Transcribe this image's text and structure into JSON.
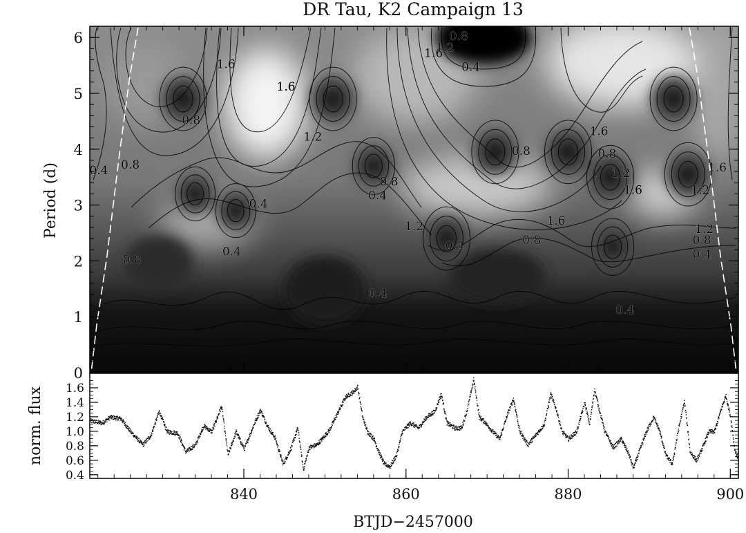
{
  "chart_data": [
    {
      "type": "heatmap",
      "title": "DR Tau, K2 Campaign 13",
      "xlabel": "",
      "ylabel": "Period (d)",
      "xlim": [
        821,
        901
      ],
      "ylim": [
        0,
        6.2
      ],
      "y_ticks": [
        "0",
        "1",
        "2",
        "3",
        "4",
        "5",
        "6"
      ],
      "colormap": "grayscale (black = low power, white = high power)",
      "contour_levels": [
        0.4,
        0.8,
        1.2,
        1.6
      ],
      "contour_labels": [
        {
          "text": "1.6",
          "x": 837.8,
          "y": 5.45
        },
        {
          "text": "1.6",
          "x": 845.2,
          "y": 5.05
        },
        {
          "text": "0.8",
          "x": 833.5,
          "y": 4.45
        },
        {
          "text": "1.2",
          "x": 848.5,
          "y": 4.15
        },
        {
          "text": "0.8",
          "x": 826.0,
          "y": 3.65
        },
        {
          "text": "0.4",
          "x": 822.1,
          "y": 3.55
        },
        {
          "text": "1.6",
          "x": 863.4,
          "y": 5.65
        },
        {
          "text": "1.2",
          "x": 864.8,
          "y": 5.75
        },
        {
          "text": "0.8",
          "x": 866.5,
          "y": 5.95
        },
        {
          "text": "0.4",
          "x": 868.0,
          "y": 5.4
        },
        {
          "text": "1.6",
          "x": 883.8,
          "y": 4.25
        },
        {
          "text": "0.8",
          "x": 874.2,
          "y": 3.9
        },
        {
          "text": "0.8",
          "x": 884.8,
          "y": 3.85
        },
        {
          "text": "1.2",
          "x": 886.5,
          "y": 3.5
        },
        {
          "text": "1.6",
          "x": 888.0,
          "y": 3.2
        },
        {
          "text": "1.2",
          "x": 896.3,
          "y": 3.2
        },
        {
          "text": "1.6",
          "x": 898.4,
          "y": 3.6
        },
        {
          "text": "0.8",
          "x": 857.9,
          "y": 3.35
        },
        {
          "text": "0.4",
          "x": 856.5,
          "y": 3.1
        },
        {
          "text": "0.4",
          "x": 841.8,
          "y": 2.95
        },
        {
          "text": "1.2",
          "x": 861.0,
          "y": 2.55
        },
        {
          "text": "1.6",
          "x": 878.5,
          "y": 2.65
        },
        {
          "text": "0.4",
          "x": 838.5,
          "y": 2.1
        },
        {
          "text": "0.8",
          "x": 826.2,
          "y": 1.95
        },
        {
          "text": "0.4",
          "x": 866.0,
          "y": 2.2
        },
        {
          "text": "0.8",
          "x": 875.5,
          "y": 2.3
        },
        {
          "text": "1.2",
          "x": 896.8,
          "y": 2.5
        },
        {
          "text": "0.8",
          "x": 896.5,
          "y": 2.3
        },
        {
          "text": "0.4",
          "x": 896.5,
          "y": 2.05
        },
        {
          "text": "0.4",
          "x": 856.5,
          "y": 1.35
        },
        {
          "text": "0.4",
          "x": 887.0,
          "y": 1.05
        }
      ],
      "power_peaks": [
        {
          "x": 832.5,
          "y": 4.9,
          "v": 1.0
        },
        {
          "x": 851.0,
          "y": 4.9,
          "v": 1.0
        },
        {
          "x": 893.0,
          "y": 4.9,
          "v": 1.0
        },
        {
          "x": 871.0,
          "y": 3.95,
          "v": 1.0
        },
        {
          "x": 880.0,
          "y": 3.95,
          "v": 1.0
        },
        {
          "x": 894.8,
          "y": 3.55,
          "v": 1.0
        },
        {
          "x": 885.2,
          "y": 3.5,
          "v": 1.0
        },
        {
          "x": 834.0,
          "y": 3.2,
          "v": 0.85
        },
        {
          "x": 839.0,
          "y": 2.9,
          "v": 0.85
        },
        {
          "x": 856.0,
          "y": 3.7,
          "v": 0.9
        },
        {
          "x": 865.0,
          "y": 2.4,
          "v": 1.0
        },
        {
          "x": 885.5,
          "y": 2.25,
          "v": 0.9
        }
      ]
    },
    {
      "type": "scatter",
      "title": "",
      "xlabel": "BTJD−2457000",
      "ylabel": "norm. flux",
      "xlim": [
        821,
        901
      ],
      "ylim": [
        0.35,
        1.8
      ],
      "x_ticks": [
        "840",
        "860",
        "880",
        "900"
      ],
      "y_ticks": [
        "0.4",
        "0.6",
        "0.8",
        "1.0",
        "1.2",
        "1.4",
        "1.6"
      ],
      "light_curve_keypoints": [
        [
          821.0,
          1.15
        ],
        [
          822.5,
          1.12
        ],
        [
          823.5,
          1.2
        ],
        [
          824.8,
          1.18
        ],
        [
          826.0,
          1.0
        ],
        [
          827.5,
          0.82
        ],
        [
          828.5,
          0.95
        ],
        [
          829.5,
          1.28
        ],
        [
          830.5,
          1.0
        ],
        [
          831.8,
          0.98
        ],
        [
          832.8,
          0.72
        ],
        [
          834.0,
          0.82
        ],
        [
          835.0,
          1.08
        ],
        [
          836.0,
          1.0
        ],
        [
          837.2,
          1.35
        ],
        [
          838.0,
          0.68
        ],
        [
          839.0,
          1.0
        ],
        [
          840.0,
          0.76
        ],
        [
          841.2,
          1.1
        ],
        [
          842.0,
          1.3
        ],
        [
          843.0,
          1.05
        ],
        [
          843.8,
          0.92
        ],
        [
          844.8,
          0.55
        ],
        [
          845.8,
          0.78
        ],
        [
          846.6,
          1.05
        ],
        [
          847.3,
          0.48
        ],
        [
          848.0,
          0.78
        ],
        [
          849.0,
          0.82
        ],
        [
          850.5,
          1.02
        ],
        [
          851.5,
          1.25
        ],
        [
          852.5,
          1.48
        ],
        [
          853.5,
          1.55
        ],
        [
          854.0,
          1.62
        ],
        [
          854.6,
          1.2
        ],
        [
          855.2,
          1.0
        ],
        [
          856.0,
          0.9
        ],
        [
          856.6,
          0.72
        ],
        [
          857.3,
          0.55
        ],
        [
          858.0,
          0.52
        ],
        [
          858.8,
          0.68
        ],
        [
          859.5,
          1.0
        ],
        [
          860.5,
          1.12
        ],
        [
          861.5,
          1.05
        ],
        [
          862.5,
          1.2
        ],
        [
          863.5,
          1.28
        ],
        [
          864.3,
          1.52
        ],
        [
          865.0,
          1.12
        ],
        [
          866.0,
          1.05
        ],
        [
          866.8,
          1.05
        ],
        [
          867.5,
          1.3
        ],
        [
          868.3,
          1.72
        ],
        [
          869.0,
          1.2
        ],
        [
          869.8,
          1.12
        ],
        [
          870.5,
          1.02
        ],
        [
          871.5,
          0.9
        ],
        [
          872.5,
          1.25
        ],
        [
          873.2,
          1.45
        ],
        [
          874.0,
          1.0
        ],
        [
          875.0,
          0.82
        ],
        [
          876.3,
          1.0
        ],
        [
          877.0,
          1.1
        ],
        [
          877.8,
          1.52
        ],
        [
          878.5,
          1.3
        ],
        [
          879.2,
          1.0
        ],
        [
          880.0,
          0.9
        ],
        [
          881.0,
          1.0
        ],
        [
          882.0,
          1.4
        ],
        [
          882.6,
          1.1
        ],
        [
          883.2,
          1.58
        ],
        [
          883.8,
          1.3
        ],
        [
          884.5,
          1.0
        ],
        [
          885.5,
          0.78
        ],
        [
          886.5,
          0.9
        ],
        [
          887.4,
          0.7
        ],
        [
          888.0,
          0.5
        ],
        [
          888.8,
          0.75
        ],
        [
          889.6,
          1.0
        ],
        [
          890.5,
          1.2
        ],
        [
          891.2,
          1.02
        ],
        [
          892.0,
          0.68
        ],
        [
          892.8,
          0.55
        ],
        [
          893.5,
          1.0
        ],
        [
          894.3,
          1.42
        ],
        [
          895.0,
          0.72
        ],
        [
          895.8,
          0.6
        ],
        [
          896.6,
          0.8
        ],
        [
          897.3,
          1.0
        ],
        [
          898.0,
          1.0
        ],
        [
          898.8,
          1.3
        ],
        [
          899.4,
          1.5
        ],
        [
          900.0,
          1.2
        ],
        [
          900.5,
          0.75
        ],
        [
          901.0,
          0.6
        ]
      ]
    }
  ]
}
